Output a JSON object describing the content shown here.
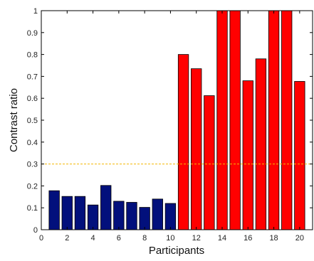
{
  "chart_data": {
    "type": "bar",
    "title": "",
    "xlabel": "Participants",
    "ylabel": "Contrast ratio",
    "xlim": [
      0,
      21
    ],
    "ylim": [
      0,
      1
    ],
    "xticks": [
      0,
      2,
      4,
      6,
      8,
      10,
      12,
      14,
      16,
      18,
      20
    ],
    "yticks": [
      0,
      0.1,
      0.2,
      0.3,
      0.4,
      0.5,
      0.6,
      0.7,
      0.8,
      0.9,
      1
    ],
    "x": [
      1,
      2,
      3,
      4,
      5,
      6,
      7,
      8,
      9,
      10,
      11,
      12,
      13,
      14,
      15,
      16,
      17,
      18,
      19,
      20
    ],
    "values": [
      0.178,
      0.152,
      0.152,
      0.113,
      0.202,
      0.13,
      0.125,
      0.102,
      0.14,
      0.12,
      0.8,
      0.735,
      0.612,
      1.0,
      1.0,
      0.68,
      0.78,
      1.0,
      1.0,
      0.677
    ],
    "groups": [
      {
        "x_range": [
          1,
          10
        ],
        "color": "#02107c"
      },
      {
        "x_range": [
          11,
          20
        ],
        "color": "#ff0000"
      }
    ],
    "threshold": {
      "y": 0.3,
      "color": "#f2b705",
      "style": "dashed"
    },
    "grid": false
  }
}
